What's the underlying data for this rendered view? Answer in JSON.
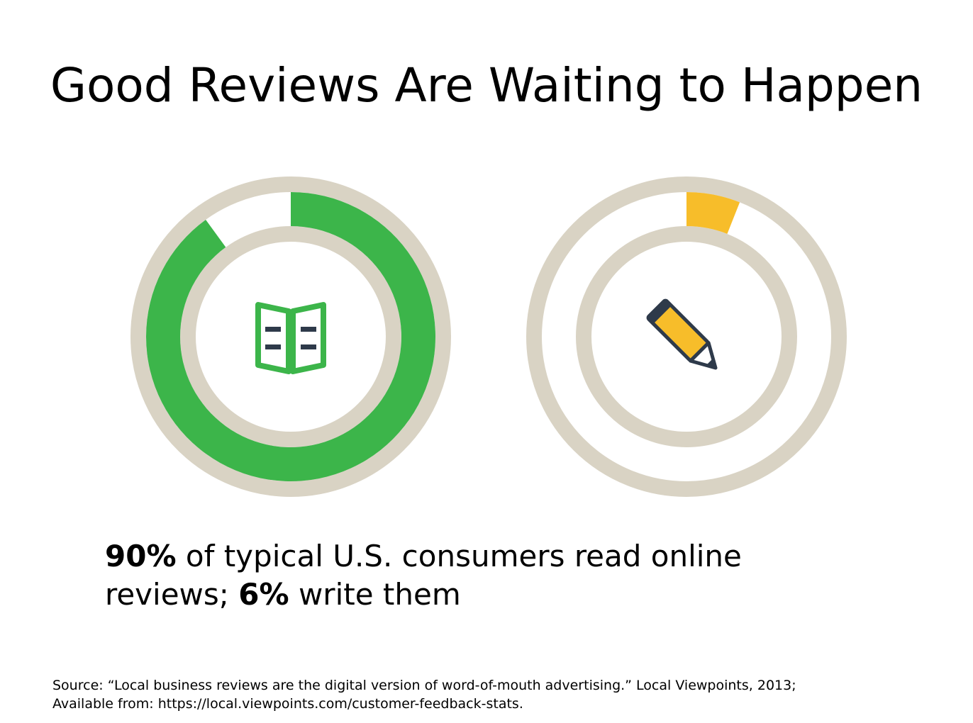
{
  "slide": {
    "title": "Good Reviews Are Waiting to Happen",
    "statement": {
      "read_pct": "90%",
      "read_text": " of typical U.S. consumers read online reviews; ",
      "write_pct": "6%",
      "write_text": " write them"
    },
    "source_line1": "Source: “Local business reviews are the digital version of word-of-mouth advertising.” Local Viewpoints, 2013;",
    "source_line2": "Available from: https://local.viewpoints.com/customer-feedback-stats."
  },
  "chart_data": [
    {
      "type": "pie",
      "value": 90,
      "unit": "%",
      "max": 100,
      "icon": "open-book-icon",
      "colors": {
        "fill": "#3cb54a",
        "track": "#ffffff",
        "ring": "#d9d3c4",
        "icon": "#3cb54a",
        "icon_lines": "#2e3a4a"
      }
    },
    {
      "type": "pie",
      "value": 6,
      "unit": "%",
      "max": 100,
      "icon": "pencil-icon",
      "colors": {
        "fill": "#f7bd2a",
        "track": "#ffffff",
        "ring": "#d9d3c4",
        "icon": "#f7bd2a",
        "icon_lines": "#2e3a4a"
      }
    }
  ]
}
